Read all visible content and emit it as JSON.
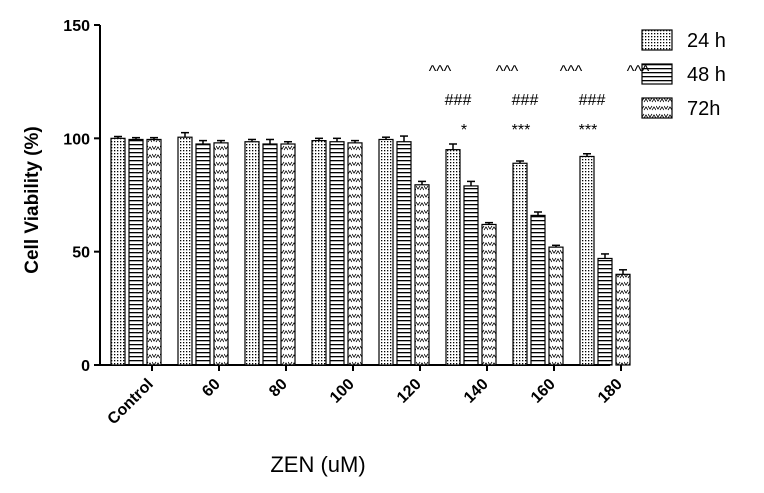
{
  "chart_data": {
    "type": "bar",
    "title": "",
    "xlabel": "ZEN (uM)",
    "ylabel": "Cell Viability (%)",
    "ylim": [
      0,
      150
    ],
    "yticks": [
      0,
      50,
      100,
      150
    ],
    "categories": [
      "Control",
      "60",
      "80",
      "100",
      "120",
      "140",
      "160",
      "180"
    ],
    "series": [
      {
        "name": "24 h",
        "pattern": "dots",
        "values": [
          100,
          100.5,
          98.5,
          99,
          99.5,
          95,
          89,
          92
        ],
        "errors": [
          0.8,
          2,
          1,
          1,
          1,
          2.5,
          1,
          1.2
        ]
      },
      {
        "name": "48 h",
        "pattern": "hlines",
        "values": [
          99.5,
          97.5,
          97.5,
          98.5,
          98.5,
          79,
          66,
          47
        ],
        "errors": [
          0.8,
          1.5,
          2,
          1.5,
          2.5,
          2,
          1.5,
          2
        ]
      },
      {
        "name": "72h",
        "pattern": "zigzag",
        "values": [
          99.5,
          98,
          97.5,
          98,
          79.5,
          62,
          52,
          40
        ],
        "errors": [
          0.8,
          1,
          1,
          1,
          1.5,
          0.8,
          0.8,
          2
        ]
      }
    ],
    "annotations": [
      {
        "category": "140",
        "row1": "^^^",
        "row2": "###",
        "row3": "*"
      },
      {
        "category": "160",
        "row1": "^^^",
        "row2": "###",
        "row3": "***"
      },
      {
        "category": "180",
        "row1": "^^^",
        "row2": "###",
        "row3": "***"
      },
      {
        "category": "180",
        "row1": "^^^",
        "row2": "",
        "row3": ""
      }
    ],
    "legend_position": "top-right",
    "grid": false
  },
  "colors": {
    "bar_stroke": "#000000",
    "background": "#ffffff"
  }
}
